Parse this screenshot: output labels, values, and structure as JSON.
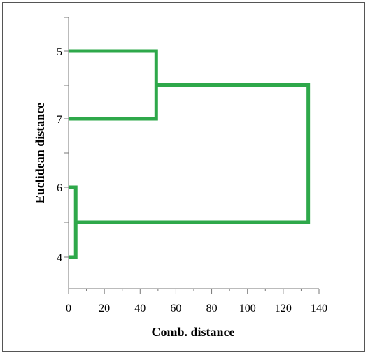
{
  "chart_data": {
    "type": "dendrogram",
    "xlabel": "Comb. distance",
    "ylabel": "Euclidean distance",
    "xlim": [
      0,
      140
    ],
    "x_ticks": [
      0,
      20,
      40,
      60,
      80,
      100,
      120,
      140
    ],
    "leaves": [
      "5",
      "7",
      "6",
      "4"
    ],
    "merges": [
      {
        "left": "6",
        "right": "4",
        "distance": 4
      },
      {
        "left": "5",
        "right": "7",
        "distance": 49
      },
      {
        "left": "5+7",
        "right": "6+4",
        "distance": 134
      }
    ],
    "line_color": "#2ea84a",
    "grid": false
  }
}
